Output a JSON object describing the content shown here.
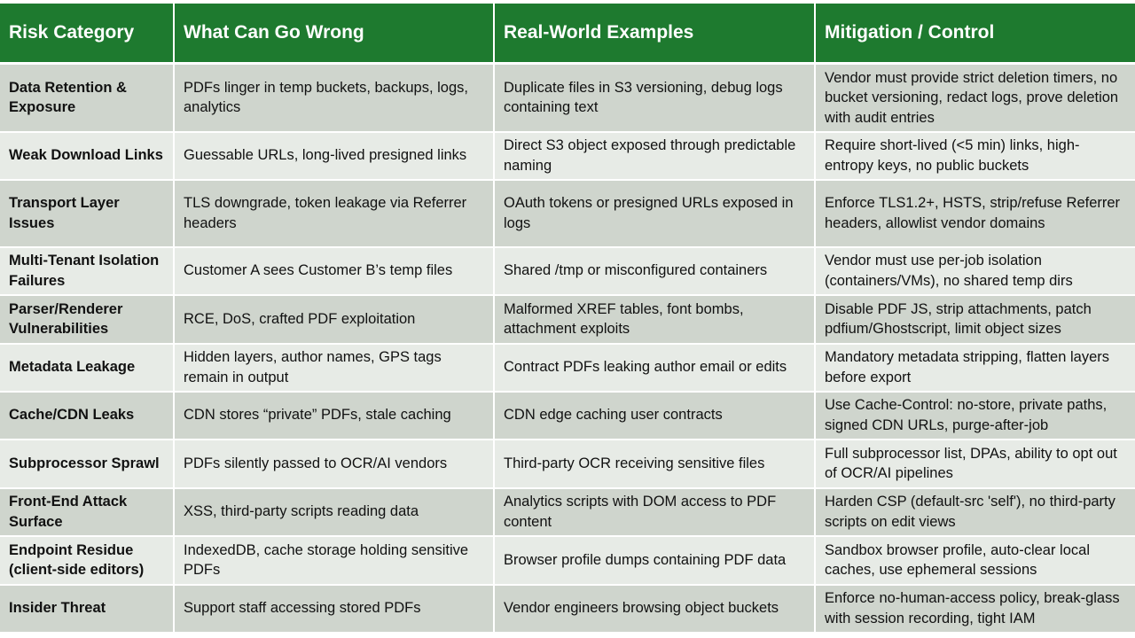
{
  "table": {
    "headers": [
      "Risk Category",
      "What Can Go Wrong",
      "Real-World Examples",
      "Mitigation / Control"
    ],
    "rows": [
      [
        "Data Retention & Exposure",
        "PDFs linger in temp buckets, backups, logs, analytics",
        "Duplicate files in S3 versioning, debug logs containing text",
        "Vendor must provide strict deletion timers, no bucket versioning, redact logs, prove deletion with audit entries"
      ],
      [
        "Weak Download Links",
        "Guessable URLs, long-lived presigned links",
        "Direct S3 object exposed through predictable naming",
        "Require short-lived (<5 min) links, high-entropy keys, no public buckets"
      ],
      [
        "Transport Layer Issues",
        "TLS downgrade, token leakage via Referrer headers",
        "OAuth tokens or presigned URLs exposed in logs",
        "Enforce TLS1.2+, HSTS, strip/refuse Referrer headers, allowlist vendor domains"
      ],
      [
        "Multi-Tenant Isolation Failures",
        "Customer A sees Customer B’s temp files",
        "Shared /tmp or misconfigured containers",
        "Vendor must use per-job isolation (containers/VMs), no shared temp dirs"
      ],
      [
        "Parser/Renderer Vulnerabilities",
        "RCE, DoS, crafted PDF exploitation",
        "Malformed XREF tables, font bombs, attachment exploits",
        "Disable PDF JS, strip attachments, patch pdfium/Ghostscript, limit object sizes"
      ],
      [
        "Metadata Leakage",
        "Hidden layers, author names, GPS tags remain in output",
        "Contract PDFs leaking author email or edits",
        "Mandatory metadata stripping, flatten layers before export"
      ],
      [
        "Cache/CDN Leaks",
        "CDN stores “private” PDFs, stale caching",
        "CDN edge caching user contracts",
        "Use Cache-Control: no-store, private paths, signed CDN URLs, purge-after-job"
      ],
      [
        "Subprocessor Sprawl",
        "PDFs silently passed to OCR/AI vendors",
        "Third-party OCR receiving sensitive files",
        "Full subprocessor list, DPAs, ability to opt out of OCR/AI pipelines"
      ],
      [
        "Front-End Attack Surface",
        "XSS, third-party scripts reading data",
        "Analytics scripts with DOM access to PDF content",
        "Harden CSP (default-src 'self'), no third-party scripts on edit views"
      ],
      [
        "Endpoint Residue (client-side editors)",
        "IndexedDB, cache storage holding sensitive PDFs",
        "Browser profile dumps containing PDF data",
        "Sandbox browser profile, auto-clear local caches, use ephemeral sessions"
      ],
      [
        "Insider Threat",
        "Support staff accessing stored PDFs",
        "Vendor engineers browsing object buckets",
        "Enforce no-human-access policy, break-glass with session recording, tight IAM"
      ]
    ]
  }
}
